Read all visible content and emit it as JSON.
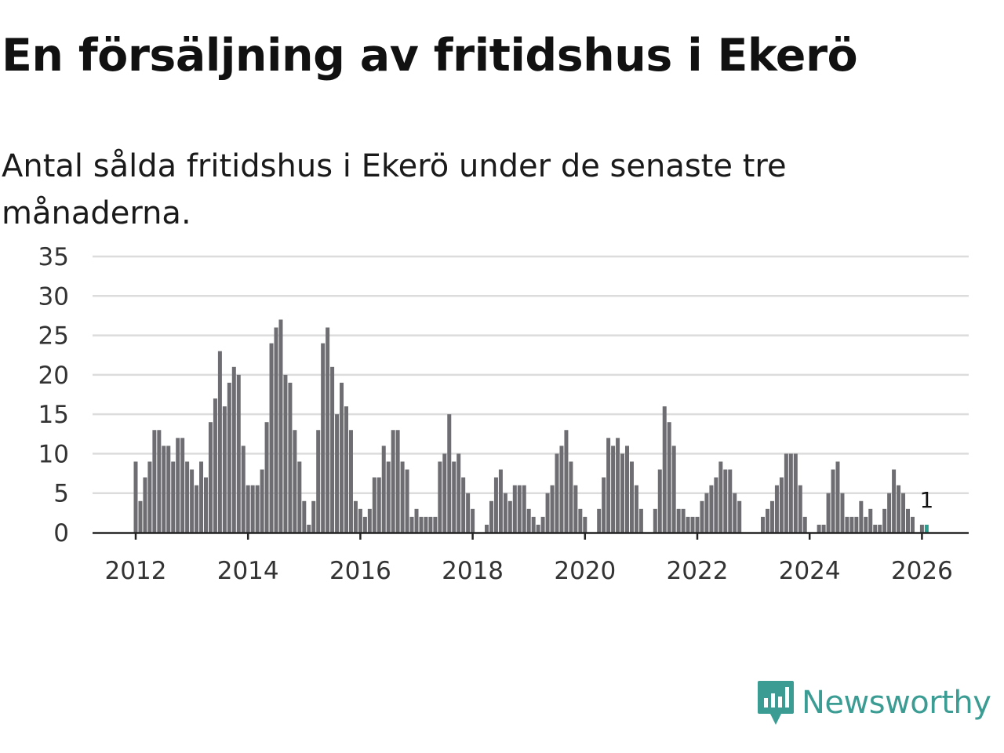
{
  "header": {
    "title": "En försäljning av fritidshus i Ekerö",
    "subtitle": "Antal sålda fritidshus i Ekerö under de senaste tre månaderna."
  },
  "brand": {
    "name": "Newsworthy",
    "color": "#3b9c93"
  },
  "chart_data": {
    "type": "bar",
    "title": "Antal sålda fritidshus i Ekerö under de senaste tre månaderna.",
    "xlabel": "",
    "ylabel": "",
    "start": "2012-01",
    "frequency": "monthly",
    "ylim": [
      0,
      35
    ],
    "yticks": [
      "0",
      "5",
      "10",
      "15",
      "20",
      "25",
      "30",
      "35"
    ],
    "xticks": [
      "2012",
      "2014",
      "2016",
      "2018",
      "2020",
      "2022",
      "2024",
      "2026"
    ],
    "grid": true,
    "bar_color": "#6e6d72",
    "highlight_color": "#2a9d8f",
    "annotation": {
      "label": "1",
      "target": "last"
    },
    "values": [
      9,
      4,
      7,
      9,
      13,
      13,
      11,
      11,
      9,
      12,
      12,
      9,
      8,
      6,
      9,
      7,
      14,
      17,
      23,
      16,
      19,
      21,
      20,
      11,
      6,
      6,
      6,
      8,
      14,
      24,
      26,
      27,
      20,
      19,
      13,
      9,
      4,
      1,
      4,
      13,
      24,
      26,
      21,
      15,
      19,
      16,
      13,
      4,
      3,
      2,
      3,
      7,
      7,
      11,
      9,
      13,
      13,
      9,
      8,
      2,
      3,
      2,
      2,
      2,
      2,
      9,
      10,
      15,
      9,
      10,
      7,
      5,
      3,
      0,
      0,
      1,
      4,
      7,
      8,
      5,
      4,
      6,
      6,
      6,
      3,
      2,
      1,
      2,
      5,
      6,
      10,
      11,
      13,
      9,
      6,
      3,
      2,
      0,
      0,
      3,
      7,
      12,
      11,
      12,
      10,
      11,
      9,
      6,
      3,
      0,
      0,
      3,
      8,
      16,
      14,
      11,
      3,
      3,
      2,
      2,
      2,
      4,
      5,
      6,
      7,
      9,
      8,
      8,
      5,
      4,
      0,
      0,
      0,
      0,
      2,
      3,
      4,
      6,
      7,
      10,
      10,
      10,
      6,
      2,
      0,
      0,
      1,
      1,
      5,
      8,
      9,
      5,
      2,
      2,
      2,
      4,
      2,
      3,
      1,
      1,
      3,
      5,
      8,
      6,
      5,
      3,
      2,
      0,
      1,
      1
    ]
  }
}
